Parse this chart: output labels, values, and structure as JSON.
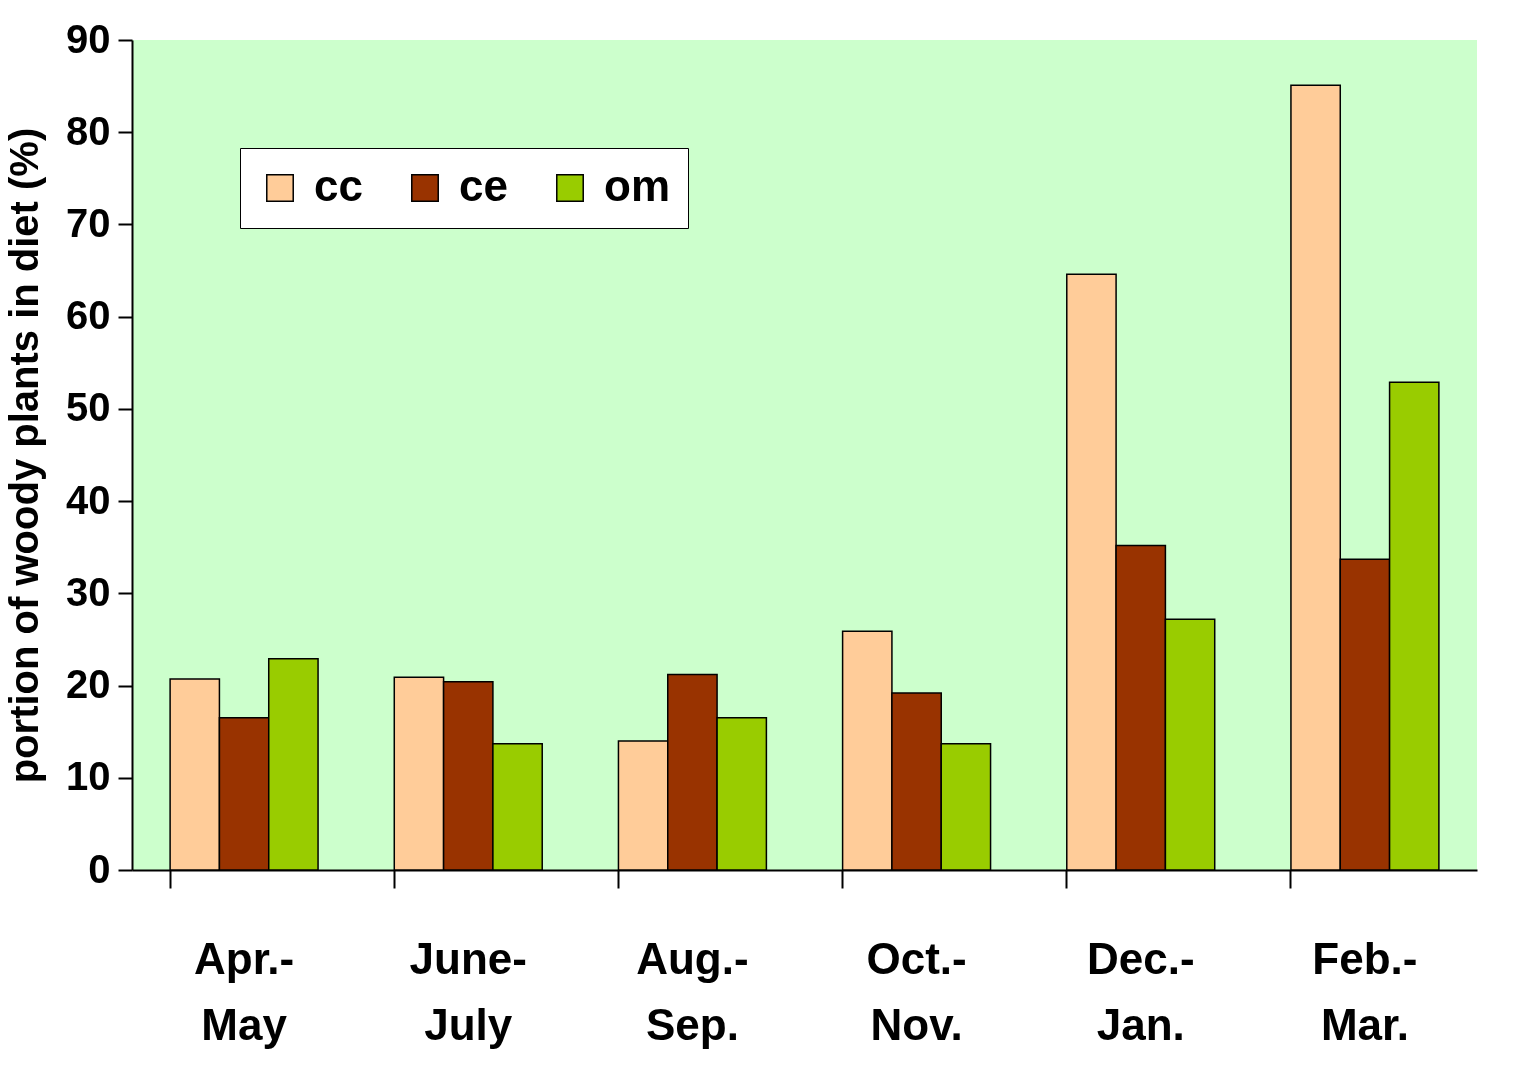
{
  "chart_data": {
    "type": "bar",
    "ylabel": "portion of woody plants in diet (%)",
    "categories": [
      "Apr.-\nMay",
      "June-\nJuly",
      "Aug.-\nSep.",
      "Oct.-\nNov.",
      "Dec.-\nJan.",
      "Feb.-\nMar."
    ],
    "series": [
      {
        "name": "cc",
        "color": "#ffcc99",
        "values": [
          20.7,
          20.9,
          14.0,
          25.9,
          64.6,
          85.1
        ]
      },
      {
        "name": "ce",
        "color": "#993300",
        "values": [
          16.5,
          20.4,
          21.2,
          19.2,
          35.2,
          33.7
        ]
      },
      {
        "name": "om",
        "color": "#99cc00",
        "values": [
          22.9,
          13.7,
          16.5,
          13.7,
          27.2,
          52.9
        ]
      }
    ],
    "ylim": [
      0,
      90
    ],
    "yticks": [
      0,
      10,
      20,
      30,
      40,
      50,
      60,
      70,
      80,
      90
    ],
    "grid": false,
    "legend": "top left"
  }
}
